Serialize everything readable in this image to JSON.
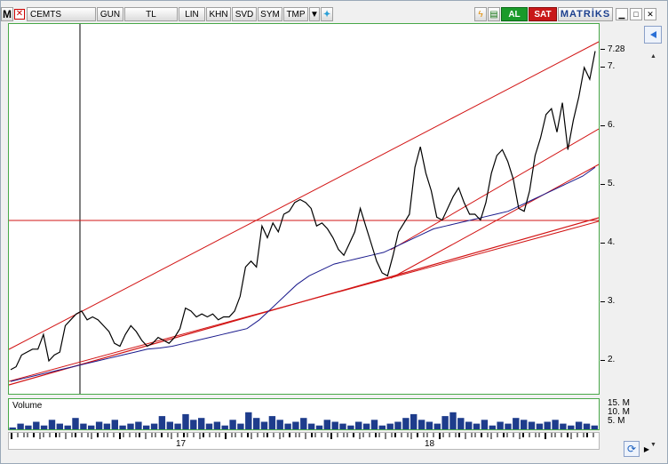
{
  "toolbar": {
    "logo": "M",
    "symbol": "CEMTS",
    "buttons": [
      "GUN",
      "TL",
      "LIN",
      "KHN",
      "SVD",
      "SYM",
      "TMP"
    ],
    "buy_label": "AL",
    "sell_label": "SAT",
    "brand": "MATRİKS"
  },
  "colors": {
    "price_line": "#000000",
    "moving_average": "#1a1a8c",
    "trend_lines": "#d21414",
    "volume": "#1e3c8c",
    "buy": "#1a9a2a",
    "sell": "#c81818"
  },
  "icons": [
    "close-icon",
    "dropdown-icon",
    "twitter-icon",
    "lightning-icon",
    "chart-icon",
    "blue-arrow-icon",
    "refresh-icon",
    "minimize-icon",
    "maximize-icon",
    "close-window-icon"
  ],
  "volume_panel": {
    "label": "Volume",
    "axis_labels": [
      "15. M",
      "10. M",
      "5. M"
    ]
  },
  "price_axis": {
    "last_price": "7.28",
    "labels": [
      "7.",
      "6.",
      "5.",
      "4.",
      "3.",
      "2."
    ]
  },
  "timeline": {
    "labels": [
      "17",
      "18"
    ]
  },
  "chart_data": {
    "type": "line",
    "ylim": [
      1.5,
      7.6
    ],
    "last_value": 7.28,
    "yticks": [
      2,
      3,
      4,
      5,
      6,
      7
    ],
    "x_labels": [
      "17",
      "18"
    ],
    "price": [
      1.85,
      1.9,
      2.1,
      2.15,
      2.2,
      2.2,
      2.45,
      2.0,
      2.1,
      2.15,
      2.6,
      2.7,
      2.8,
      2.85,
      2.7,
      2.75,
      2.7,
      2.6,
      2.5,
      2.3,
      2.25,
      2.45,
      2.6,
      2.5,
      2.35,
      2.25,
      2.3,
      2.4,
      2.35,
      2.3,
      2.4,
      2.55,
      2.9,
      2.85,
      2.75,
      2.8,
      2.75,
      2.8,
      2.7,
      2.75,
      2.75,
      2.85,
      3.1,
      3.6,
      3.7,
      3.6,
      4.3,
      4.1,
      4.35,
      4.2,
      4.5,
      4.55,
      4.7,
      4.75,
      4.7,
      4.6,
      4.3,
      4.35,
      4.25,
      4.1,
      3.9,
      3.8,
      4.0,
      4.2,
      4.6,
      4.3,
      4.0,
      3.7,
      3.5,
      3.45,
      3.8,
      4.2,
      4.35,
      4.5,
      5.3,
      5.65,
      5.2,
      4.9,
      4.45,
      4.4,
      4.6,
      4.8,
      4.95,
      4.7,
      4.5,
      4.5,
      4.4,
      4.7,
      5.2,
      5.5,
      5.6,
      5.4,
      5.1,
      4.6,
      4.55,
      4.9,
      5.5,
      5.8,
      6.2,
      6.3,
      5.9,
      6.4,
      5.6,
      6.1,
      6.5,
      7.0,
      6.8,
      7.28
    ],
    "moving_average": [
      1.65,
      1.7,
      1.75,
      1.8,
      1.85,
      1.9,
      1.95,
      2.0,
      2.05,
      2.1,
      2.15,
      2.2,
      2.22,
      2.25,
      2.3,
      2.35,
      2.4,
      2.45,
      2.5,
      2.55,
      2.7,
      2.9,
      3.1,
      3.3,
      3.45,
      3.55,
      3.65,
      3.7,
      3.75,
      3.8,
      3.85,
      3.95,
      4.05,
      4.15,
      4.25,
      4.3,
      4.35,
      4.4,
      4.45,
      4.5,
      4.55,
      4.65,
      4.75,
      4.85,
      4.95,
      5.05,
      5.15,
      5.3
    ],
    "volume_millions": [
      1,
      3,
      2,
      4,
      2,
      5,
      3,
      2,
      6,
      3,
      2,
      4,
      3,
      5,
      2,
      3,
      4,
      2,
      3,
      7,
      4,
      3,
      8,
      5,
      6,
      3,
      4,
      2,
      5,
      3,
      9,
      6,
      4,
      7,
      5,
      3,
      4,
      6,
      3,
      2,
      5,
      4,
      3,
      2,
      4,
      3,
      5,
      2,
      3,
      4,
      6,
      8,
      5,
      4,
      3,
      7,
      9,
      6,
      4,
      3,
      5,
      2,
      4,
      3,
      6,
      5,
      4,
      3,
      4,
      5,
      3,
      2,
      4,
      3,
      2
    ]
  }
}
